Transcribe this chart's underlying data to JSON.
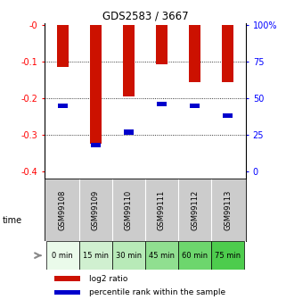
{
  "title": "GDS2583 / 3667",
  "gsm_labels": [
    "GSM99108",
    "GSM99109",
    "GSM99110",
    "GSM99111",
    "GSM99112",
    "GSM99113"
  ],
  "time_labels": [
    "0 min",
    "15 min",
    "30 min",
    "45 min",
    "60 min",
    "75 min"
  ],
  "time_bg_colors": [
    "#eafaea",
    "#d0f0d0",
    "#b8eab8",
    "#90df90",
    "#6dd66d",
    "#4dcc4d"
  ],
  "log2_values": [
    -0.115,
    -0.325,
    -0.195,
    -0.107,
    -0.155,
    -0.155
  ],
  "percentile_values": [
    45,
    18,
    27,
    46,
    45,
    38
  ],
  "bar_color": "#cc1100",
  "marker_color": "#0000cc",
  "left_yticks": [
    0.0,
    -0.1,
    -0.2,
    -0.3,
    -0.4
  ],
  "right_yticks": [
    0,
    25,
    50,
    75,
    100
  ],
  "right_yticklabels": [
    "0",
    "25",
    "50",
    "75",
    "100%"
  ],
  "bar_width": 0.35,
  "background_color": "#ffffff",
  "legend_red_label": "log2 ratio",
  "legend_blue_label": "percentile rank within the sample"
}
